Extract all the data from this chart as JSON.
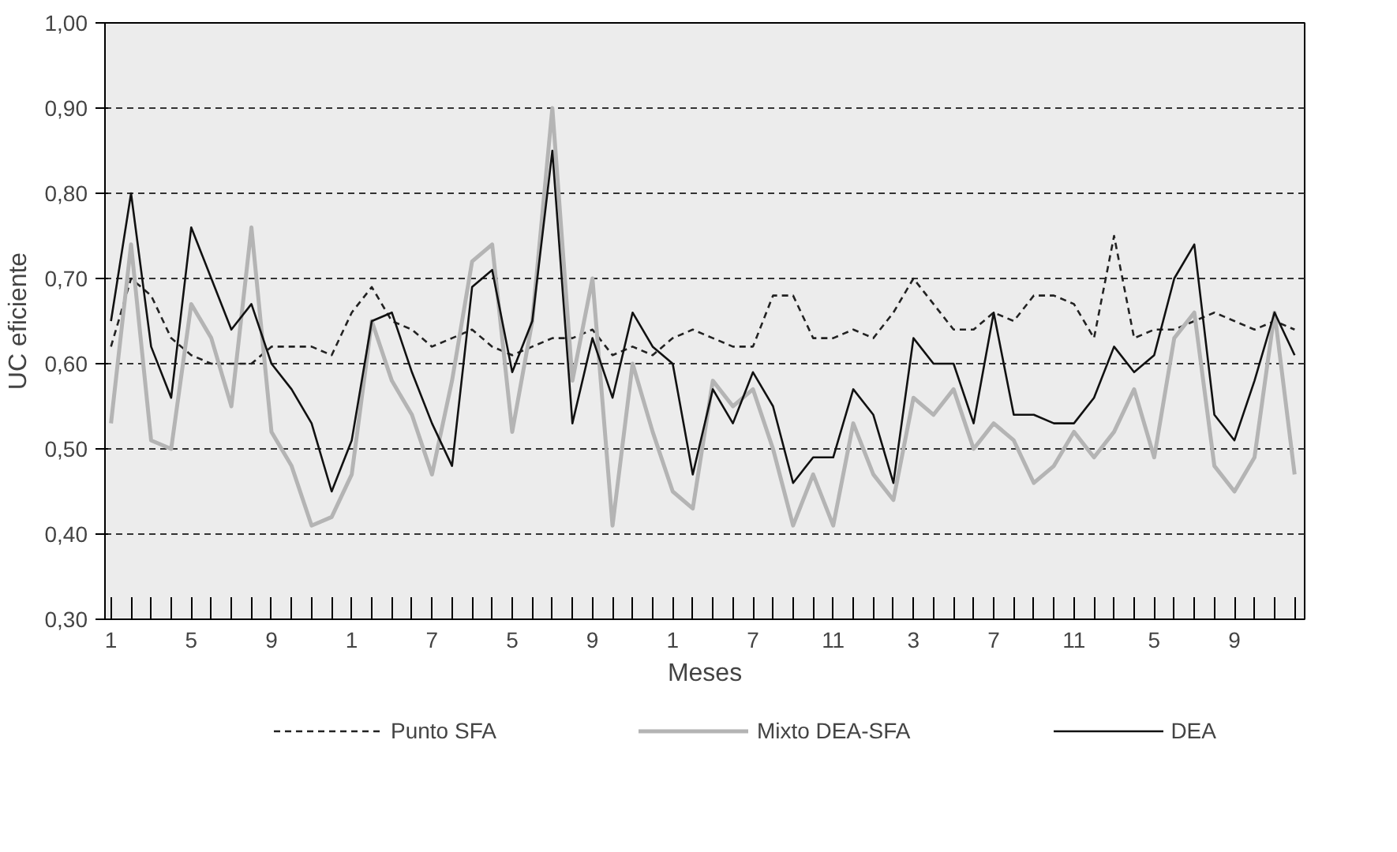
{
  "chart_data": {
    "type": "line",
    "xlabel": "Meses",
    "ylabel": "UC eficiente",
    "categories": [
      "1",
      null,
      null,
      null,
      "5",
      null,
      null,
      null,
      "9",
      null,
      null,
      null,
      "1",
      null,
      null,
      null,
      "7",
      null,
      null,
      null,
      "5",
      null,
      null,
      null,
      "9",
      null,
      null,
      null,
      "1",
      null,
      null,
      null,
      "7",
      null,
      null,
      null,
      "11",
      null,
      null,
      null,
      "3",
      null,
      null,
      null,
      "7",
      null,
      null,
      null,
      "11",
      null,
      null,
      null,
      "5",
      null,
      null,
      null,
      "9",
      null,
      null,
      null
    ],
    "series": [
      {
        "name": "Punto SFA",
        "color": "#222222",
        "line_style": "dashed",
        "values": [
          0.62,
          0.7,
          0.68,
          0.63,
          0.61,
          0.6,
          0.6,
          0.6,
          0.62,
          0.62,
          0.62,
          0.61,
          0.66,
          0.69,
          0.65,
          0.64,
          0.62,
          0.63,
          0.64,
          0.62,
          0.61,
          0.62,
          0.63,
          0.63,
          0.64,
          0.61,
          0.62,
          0.61,
          0.63,
          0.64,
          0.63,
          0.62,
          0.62,
          0.68,
          0.68,
          0.63,
          0.63,
          0.64,
          0.63,
          0.66,
          0.7,
          0.67,
          0.64,
          0.64,
          0.66,
          0.65,
          0.68,
          0.68,
          0.67,
          0.63,
          0.75,
          0.63,
          0.64,
          0.64,
          0.65,
          0.66,
          0.65,
          0.64,
          0.65,
          0.64
        ]
      },
      {
        "name": "Mixto DEA-SFA",
        "color": "#b4b4b4",
        "line_style": "solid",
        "values": [
          0.53,
          0.74,
          0.51,
          0.5,
          0.67,
          0.63,
          0.55,
          0.76,
          0.52,
          0.48,
          0.41,
          0.42,
          0.47,
          0.65,
          0.58,
          0.54,
          0.47,
          0.58,
          0.72,
          0.74,
          0.52,
          0.65,
          0.9,
          0.58,
          0.7,
          0.41,
          0.6,
          0.52,
          0.45,
          0.43,
          0.58,
          0.55,
          0.57,
          0.5,
          0.41,
          0.47,
          0.41,
          0.53,
          0.47,
          0.44,
          0.56,
          0.54,
          0.57,
          0.5,
          0.53,
          0.51,
          0.46,
          0.48,
          0.52,
          0.49,
          0.52,
          0.57,
          0.49,
          0.63,
          0.66,
          0.48,
          0.45,
          0.49,
          0.66,
          0.47
        ]
      },
      {
        "name": "DEA",
        "color": "#111111",
        "line_style": "solid",
        "values": [
          0.65,
          0.8,
          0.62,
          0.56,
          0.76,
          0.7,
          0.64,
          0.67,
          0.6,
          0.57,
          0.53,
          0.45,
          0.51,
          0.65,
          0.66,
          0.59,
          0.53,
          0.48,
          0.69,
          0.71,
          0.59,
          0.65,
          0.85,
          0.53,
          0.63,
          0.56,
          0.66,
          0.62,
          0.6,
          0.47,
          0.57,
          0.53,
          0.59,
          0.55,
          0.46,
          0.49,
          0.49,
          0.57,
          0.54,
          0.46,
          0.63,
          0.6,
          0.6,
          0.53,
          0.66,
          0.54,
          0.54,
          0.53,
          0.53,
          0.56,
          0.62,
          0.59,
          0.61,
          0.7,
          0.74,
          0.54,
          0.51,
          0.58,
          0.66,
          0.61
        ]
      }
    ],
    "ylim": [
      0.3,
      1.0
    ],
    "yticks": [
      {
        "value": 0.3,
        "label": "0,30"
      },
      {
        "value": 0.4,
        "label": "0,40"
      },
      {
        "value": 0.5,
        "label": "0,50"
      },
      {
        "value": 0.6,
        "label": "0,60"
      },
      {
        "value": 0.7,
        "label": "0,70"
      },
      {
        "value": 0.8,
        "label": "0,80"
      },
      {
        "value": 0.9,
        "label": "0,90"
      },
      {
        "value": 1.0,
        "label": "1,00"
      }
    ],
    "grid": "y",
    "legend": "bottom"
  }
}
